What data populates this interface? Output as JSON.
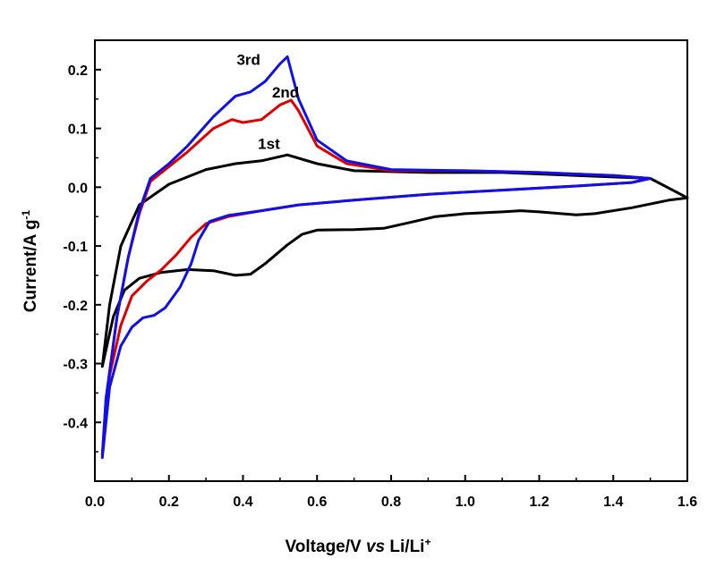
{
  "chart_data": {
    "type": "line",
    "xlabel": "Voltage/V vs Li/Li+",
    "xlabel_parts": {
      "main": "Voltage/V ",
      "italic": "vs",
      "tail": " Li/Li",
      "sup": "+"
    },
    "ylabel": "Current/A g-1",
    "ylabel_parts": {
      "main": "Current/A g",
      "sup": "-1"
    },
    "xlim": [
      0.0,
      1.6
    ],
    "ylim": [
      -0.5,
      0.25
    ],
    "x_ticks": [
      {
        "value": 0.0,
        "label": "0.0"
      },
      {
        "value": 0.2,
        "label": "0.2"
      },
      {
        "value": 0.4,
        "label": "0.4"
      },
      {
        "value": 0.6,
        "label": "0.6"
      },
      {
        "value": 0.8,
        "label": "0.8"
      },
      {
        "value": 1.0,
        "label": "1.0"
      },
      {
        "value": 1.2,
        "label": "1.2"
      },
      {
        "value": 1.4,
        "label": "1.4"
      },
      {
        "value": 1.6,
        "label": "1.6"
      }
    ],
    "y_ticks": [
      {
        "value": 0.2,
        "label": "0.2"
      },
      {
        "value": 0.1,
        "label": "0.1"
      },
      {
        "value": 0.0,
        "label": "0.0"
      },
      {
        "value": -0.1,
        "label": "-0.1"
      },
      {
        "value": -0.2,
        "label": "-0.2"
      },
      {
        "value": -0.3,
        "label": "-0.3"
      },
      {
        "value": -0.4,
        "label": "-0.4"
      }
    ],
    "grid": false,
    "annotations": [
      {
        "text": "1st",
        "x": 0.47,
        "y": 0.065
      },
      {
        "text": "2nd",
        "x": 0.515,
        "y": 0.153
      },
      {
        "text": "3rd",
        "x": 0.415,
        "y": 0.208
      }
    ],
    "series": [
      {
        "color": "#000000",
        "points": [
          [
            0.02,
            -0.305
          ],
          [
            0.05,
            -0.22
          ],
          [
            0.08,
            -0.175
          ],
          [
            0.12,
            -0.155
          ],
          [
            0.18,
            -0.145
          ],
          [
            0.25,
            -0.14
          ],
          [
            0.32,
            -0.142
          ],
          [
            0.38,
            -0.15
          ],
          [
            0.42,
            -0.148
          ],
          [
            0.46,
            -0.13
          ],
          [
            0.52,
            -0.098
          ],
          [
            0.56,
            -0.08
          ],
          [
            0.6,
            -0.073
          ],
          [
            0.7,
            -0.072
          ],
          [
            0.78,
            -0.07
          ],
          [
            0.85,
            -0.06
          ],
          [
            0.92,
            -0.05
          ],
          [
            1.0,
            -0.045
          ],
          [
            1.1,
            -0.042
          ],
          [
            1.15,
            -0.04
          ],
          [
            1.2,
            -0.042
          ],
          [
            1.3,
            -0.047
          ],
          [
            1.35,
            -0.045
          ],
          [
            1.45,
            -0.035
          ],
          [
            1.55,
            -0.022
          ],
          [
            1.6,
            -0.018
          ],
          [
            1.5,
            0.015
          ],
          [
            1.3,
            0.02
          ],
          [
            1.1,
            0.025
          ],
          [
            0.9,
            0.025
          ],
          [
            0.7,
            0.028
          ],
          [
            0.6,
            0.04
          ],
          [
            0.52,
            0.055
          ],
          [
            0.45,
            0.045
          ],
          [
            0.38,
            0.04
          ],
          [
            0.3,
            0.03
          ],
          [
            0.2,
            0.005
          ],
          [
            0.12,
            -0.03
          ],
          [
            0.07,
            -0.1
          ],
          [
            0.04,
            -0.2
          ],
          [
            0.02,
            -0.305
          ]
        ]
      },
      {
        "color": "#e00000",
        "points": [
          [
            0.02,
            -0.455
          ],
          [
            0.04,
            -0.32
          ],
          [
            0.07,
            -0.235
          ],
          [
            0.1,
            -0.185
          ],
          [
            0.14,
            -0.16
          ],
          [
            0.18,
            -0.14
          ],
          [
            0.22,
            -0.115
          ],
          [
            0.26,
            -0.085
          ],
          [
            0.3,
            -0.062
          ],
          [
            0.36,
            -0.05
          ],
          [
            0.45,
            -0.04
          ],
          [
            0.55,
            -0.03
          ],
          [
            0.7,
            -0.022
          ],
          [
            0.9,
            -0.012
          ],
          [
            1.1,
            -0.005
          ],
          [
            1.3,
            0.002
          ],
          [
            1.45,
            0.008
          ],
          [
            1.5,
            0.015
          ],
          [
            1.4,
            0.02
          ],
          [
            1.2,
            0.025
          ],
          [
            1.0,
            0.028
          ],
          [
            0.8,
            0.028
          ],
          [
            0.68,
            0.04
          ],
          [
            0.6,
            0.07
          ],
          [
            0.55,
            0.13
          ],
          [
            0.53,
            0.148
          ],
          [
            0.5,
            0.14
          ],
          [
            0.45,
            0.115
          ],
          [
            0.4,
            0.11
          ],
          [
            0.37,
            0.115
          ],
          [
            0.32,
            0.1
          ],
          [
            0.25,
            0.06
          ],
          [
            0.2,
            0.035
          ],
          [
            0.15,
            0.01
          ],
          [
            0.12,
            -0.045
          ],
          [
            0.09,
            -0.12
          ],
          [
            0.06,
            -0.22
          ],
          [
            0.03,
            -0.36
          ],
          [
            0.02,
            -0.455
          ]
        ]
      },
      {
        "color": "#1010e8",
        "points": [
          [
            0.02,
            -0.46
          ],
          [
            0.04,
            -0.34
          ],
          [
            0.07,
            -0.27
          ],
          [
            0.1,
            -0.238
          ],
          [
            0.13,
            -0.222
          ],
          [
            0.16,
            -0.218
          ],
          [
            0.19,
            -0.205
          ],
          [
            0.23,
            -0.17
          ],
          [
            0.26,
            -0.13
          ],
          [
            0.28,
            -0.09
          ],
          [
            0.31,
            -0.058
          ],
          [
            0.36,
            -0.048
          ],
          [
            0.45,
            -0.04
          ],
          [
            0.55,
            -0.03
          ],
          [
            0.7,
            -0.022
          ],
          [
            0.9,
            -0.012
          ],
          [
            1.1,
            -0.005
          ],
          [
            1.3,
            0.002
          ],
          [
            1.45,
            0.008
          ],
          [
            1.5,
            0.015
          ],
          [
            1.4,
            0.02
          ],
          [
            1.2,
            0.025
          ],
          [
            1.0,
            0.028
          ],
          [
            0.8,
            0.03
          ],
          [
            0.68,
            0.045
          ],
          [
            0.6,
            0.08
          ],
          [
            0.55,
            0.15
          ],
          [
            0.52,
            0.222
          ],
          [
            0.5,
            0.21
          ],
          [
            0.46,
            0.18
          ],
          [
            0.42,
            0.162
          ],
          [
            0.38,
            0.155
          ],
          [
            0.32,
            0.12
          ],
          [
            0.25,
            0.07
          ],
          [
            0.2,
            0.04
          ],
          [
            0.15,
            0.015
          ],
          [
            0.12,
            -0.04
          ],
          [
            0.09,
            -0.12
          ],
          [
            0.06,
            -0.22
          ],
          [
            0.03,
            -0.36
          ],
          [
            0.02,
            -0.46
          ]
        ]
      }
    ]
  }
}
